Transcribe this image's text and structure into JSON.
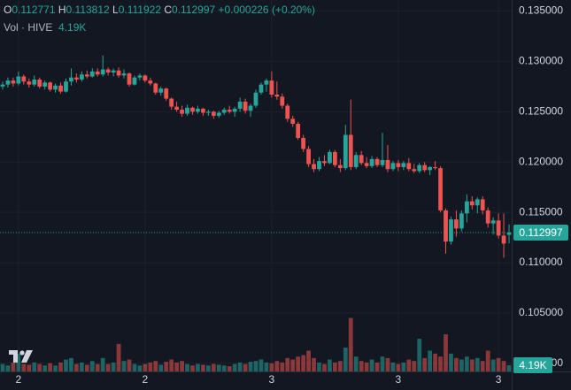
{
  "chart_data": {
    "type": "candlestick",
    "header": {
      "open_label": "O",
      "high_label": "H",
      "low_label": "L",
      "close_label": "C",
      "change": "+0.000226 (+0.20%)",
      "volume_title": "Vol · HIVE",
      "volume_label": "4.19K"
    },
    "up_color": "#26a69a",
    "down_color": "#ef5350",
    "ylim": [
      0.0992,
      0.1361
    ],
    "yticks": [
      {
        "value": 0.135,
        "label": "0.135000"
      },
      {
        "value": 0.13,
        "label": "0.130000"
      },
      {
        "value": 0.125,
        "label": "0.125000"
      },
      {
        "value": 0.12,
        "label": "0.120000"
      },
      {
        "value": 0.115,
        "label": "0.115000"
      },
      {
        "value": 0.11,
        "label": "0.110000"
      },
      {
        "value": 0.105,
        "label": "0.105000"
      },
      {
        "value": 0.1,
        "label": "0.100000"
      }
    ],
    "volume_ylim": [
      0,
      250000
    ],
    "grid": true,
    "categories": [
      null,
      null,
      null,
      "2",
      null,
      null,
      null,
      null,
      null,
      null,
      null,
      null,
      null,
      null,
      null,
      null,
      null,
      null,
      null,
      null,
      null,
      null,
      null,
      null,
      null,
      null,
      null,
      "2",
      null,
      null,
      null,
      null,
      null,
      null,
      null,
      null,
      null,
      null,
      null,
      null,
      null,
      null,
      null,
      null,
      null,
      null,
      null,
      null,
      null,
      null,
      null,
      "3",
      null,
      null,
      null,
      null,
      null,
      null,
      null,
      null,
      null,
      null,
      null,
      null,
      null,
      null,
      null,
      null,
      null,
      null,
      null,
      null,
      null,
      null,
      null,
      "3",
      null,
      null,
      null,
      null,
      null,
      null,
      null,
      null,
      null,
      null,
      null,
      null,
      null,
      null,
      null,
      null,
      null,
      null,
      "3",
      null,
      null
    ],
    "candles": [
      [
        0.1275,
        0.128,
        0.1272,
        0.1277
      ],
      [
        0.1277,
        0.1284,
        0.1274,
        0.1281
      ],
      [
        0.1281,
        0.1284,
        0.1275,
        0.1278
      ],
      [
        0.1278,
        0.129,
        0.1276,
        0.1285
      ],
      [
        0.1285,
        0.1287,
        0.1277,
        0.128
      ],
      [
        0.128,
        0.1283,
        0.1274,
        0.1277
      ],
      [
        0.1277,
        0.1286,
        0.1275,
        0.1282
      ],
      [
        0.1282,
        0.1284,
        0.1273,
        0.1275
      ],
      [
        0.1275,
        0.1281,
        0.1272,
        0.1279
      ],
      [
        0.1279,
        0.128,
        0.127,
        0.1272
      ],
      [
        0.1272,
        0.1278,
        0.1269,
        0.1276
      ],
      [
        0.1276,
        0.1279,
        0.1268,
        0.127
      ],
      [
        0.127,
        0.1283,
        0.1269,
        0.128
      ],
      [
        0.128,
        0.1293,
        0.1276,
        0.1284
      ],
      [
        0.1284,
        0.1288,
        0.1279,
        0.1282
      ],
      [
        0.1282,
        0.129,
        0.128,
        0.1287
      ],
      [
        0.1287,
        0.1291,
        0.1283,
        0.1285
      ],
      [
        0.1285,
        0.1293,
        0.1284,
        0.129
      ],
      [
        0.129,
        0.1293,
        0.1285,
        0.1287
      ],
      [
        0.1287,
        0.1306,
        0.1285,
        0.1292
      ],
      [
        0.1292,
        0.1294,
        0.1286,
        0.1289
      ],
      [
        0.1289,
        0.1293,
        0.1285,
        0.1291
      ],
      [
        0.1291,
        0.1294,
        0.1284,
        0.1286
      ],
      [
        0.1286,
        0.1292,
        0.1283,
        0.1288
      ],
      [
        0.1288,
        0.1289,
        0.1275,
        0.1277
      ],
      [
        0.1277,
        0.1286,
        0.1276,
        0.1284
      ],
      [
        0.1284,
        0.1288,
        0.1281,
        0.1286
      ],
      [
        0.1286,
        0.1287,
        0.1279,
        0.1281
      ],
      [
        0.1281,
        0.1284,
        0.1276,
        0.1278
      ],
      [
        0.1278,
        0.1279,
        0.1267,
        0.1269
      ],
      [
        0.1269,
        0.1275,
        0.1266,
        0.1273
      ],
      [
        0.1273,
        0.1274,
        0.1261,
        0.1263
      ],
      [
        0.1263,
        0.1264,
        0.1252,
        0.1255
      ],
      [
        0.1255,
        0.126,
        0.125,
        0.1252
      ],
      [
        0.1252,
        0.1256,
        0.1245,
        0.1248
      ],
      [
        0.1248,
        0.1257,
        0.1246,
        0.1254
      ],
      [
        0.1254,
        0.1255,
        0.1247,
        0.125
      ],
      [
        0.125,
        0.1256,
        0.1248,
        0.1253
      ],
      [
        0.1253,
        0.1254,
        0.1246,
        0.1249
      ],
      [
        0.1249,
        0.1252,
        0.1246,
        0.125
      ],
      [
        0.125,
        0.1251,
        0.1243,
        0.1246
      ],
      [
        0.1246,
        0.1251,
        0.1244,
        0.1249
      ],
      [
        0.1249,
        0.1254,
        0.1247,
        0.1252
      ],
      [
        0.1252,
        0.1256,
        0.1248,
        0.125
      ],
      [
        0.125,
        0.1255,
        0.1245,
        0.1253
      ],
      [
        0.1253,
        0.1264,
        0.125,
        0.126
      ],
      [
        0.126,
        0.1263,
        0.1248,
        0.1251
      ],
      [
        0.1251,
        0.1258,
        0.1245,
        0.1256
      ],
      [
        0.1256,
        0.1272,
        0.1254,
        0.1269
      ],
      [
        0.1269,
        0.1279,
        0.1267,
        0.1277
      ],
      [
        0.1277,
        0.1283,
        0.127,
        0.1281
      ],
      [
        0.1281,
        0.129,
        0.1264,
        0.1267
      ],
      [
        0.1267,
        0.128,
        0.1262,
        0.1265
      ],
      [
        0.1265,
        0.1268,
        0.1253,
        0.1256
      ],
      [
        0.1256,
        0.1258,
        0.124,
        0.1243
      ],
      [
        0.1243,
        0.1246,
        0.1235,
        0.1238
      ],
      [
        0.1238,
        0.124,
        0.1222,
        0.1224
      ],
      [
        0.1224,
        0.1227,
        0.121,
        0.1213
      ],
      [
        0.1213,
        0.1216,
        0.1195,
        0.1198
      ],
      [
        0.1198,
        0.1203,
        0.119,
        0.1193
      ],
      [
        0.1193,
        0.1205,
        0.1191,
        0.1201
      ],
      [
        0.1201,
        0.1207,
        0.1196,
        0.1199
      ],
      [
        0.1199,
        0.1212,
        0.1198,
        0.121
      ],
      [
        0.121,
        0.1212,
        0.1195,
        0.1197
      ],
      [
        0.1197,
        0.1203,
        0.119,
        0.1194
      ],
      [
        0.1194,
        0.1237,
        0.1192,
        0.1227
      ],
      [
        0.1227,
        0.1262,
        0.1192,
        0.1195
      ],
      [
        0.1195,
        0.121,
        0.1193,
        0.1207
      ],
      [
        0.1207,
        0.1211,
        0.1197,
        0.1199
      ],
      [
        0.1199,
        0.1205,
        0.1194,
        0.1196
      ],
      [
        0.1196,
        0.1206,
        0.1194,
        0.1203
      ],
      [
        0.1203,
        0.1205,
        0.1195,
        0.1197
      ],
      [
        0.1197,
        0.1229,
        0.1195,
        0.1202
      ],
      [
        0.1202,
        0.1217,
        0.119,
        0.1193
      ],
      [
        0.1193,
        0.1201,
        0.1191,
        0.1199
      ],
      [
        0.1199,
        0.1202,
        0.1191,
        0.1195
      ],
      [
        0.1195,
        0.1201,
        0.1192,
        0.1199
      ],
      [
        0.1199,
        0.1204,
        0.1191,
        0.1193
      ],
      [
        0.1193,
        0.1198,
        0.1189,
        0.1191
      ],
      [
        0.1191,
        0.1199,
        0.1189,
        0.1197
      ],
      [
        0.1197,
        0.12,
        0.119,
        0.1192
      ],
      [
        0.1192,
        0.1196,
        0.1187,
        0.1195
      ],
      [
        0.1195,
        0.1201,
        0.1192,
        0.1194
      ],
      [
        0.1194,
        0.1196,
        0.115,
        0.1152
      ],
      [
        0.1152,
        0.1154,
        0.1109,
        0.1121
      ],
      [
        0.1121,
        0.1146,
        0.1118,
        0.1143
      ],
      [
        0.1143,
        0.1152,
        0.1126,
        0.1134
      ],
      [
        0.1134,
        0.1152,
        0.1131,
        0.1149
      ],
      [
        0.1149,
        0.1168,
        0.114,
        0.1161
      ],
      [
        0.1161,
        0.1166,
        0.1153,
        0.1157
      ],
      [
        0.1157,
        0.1165,
        0.1149,
        0.1163
      ],
      [
        0.1163,
        0.1166,
        0.1148,
        0.1152
      ],
      [
        0.1152,
        0.1155,
        0.1135,
        0.1139
      ],
      [
        0.1139,
        0.1145,
        0.1128,
        0.1142
      ],
      [
        0.1142,
        0.1149,
        0.1124,
        0.1127
      ],
      [
        0.1127,
        0.1149,
        0.1105,
        0.1119
      ],
      [
        0.112771,
        0.113812,
        0.111922,
        0.112997
      ]
    ],
    "volumes": [
      5000,
      4000,
      6000,
      12000,
      5000,
      4500,
      6000,
      5000,
      4000,
      5500,
      4000,
      6000,
      8000,
      9000,
      5000,
      6000,
      4500,
      7000,
      5000,
      9000,
      5000,
      6000,
      18500,
      7000,
      8000,
      5000,
      4000,
      5000,
      6000,
      7000,
      4500,
      6500,
      8000,
      6000,
      7000,
      5000,
      4000,
      5000,
      4500,
      4000,
      5000,
      4500,
      4000,
      3500,
      5000,
      6000,
      5000,
      6500,
      7000,
      8000,
      6000,
      5500,
      7000,
      6000,
      9000,
      8000,
      10000,
      11000,
      14000,
      9000,
      6000,
      5000,
      8000,
      6000,
      7000,
      16000,
      36000,
      10000,
      7000,
      6000,
      8000,
      6000,
      10000,
      9000,
      6000,
      5000,
      6000,
      8000,
      7000,
      22000,
      9000,
      14000,
      12000,
      10000,
      25000,
      12000,
      9000,
      8000,
      10000,
      8000,
      9000,
      7000,
      14000,
      8000,
      9000,
      7000,
      4190
    ]
  }
}
